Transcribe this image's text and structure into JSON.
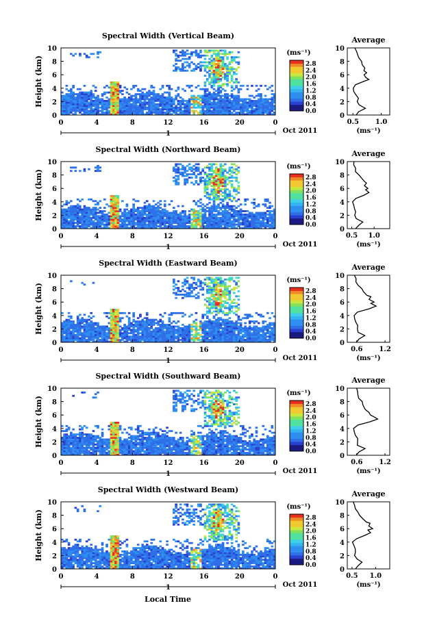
{
  "figure": {
    "xlabel": "Local Time",
    "date_label": "Oct 2011",
    "day_label": "1",
    "ylabel": "Height (km)",
    "colorbar_unit": "(ms⁻¹)",
    "avg_title": "Average",
    "avg_xlabel": "(ms⁻¹)"
  },
  "chart_data": [
    {
      "type": "heatmap",
      "title": "Spectral Width (Vertical Beam)",
      "x_ticks": [
        "0",
        "4",
        "8",
        "12",
        "16",
        "20",
        "0"
      ],
      "xlim": [
        0,
        24
      ],
      "y_ticks": [
        "0",
        "2",
        "4",
        "6",
        "8",
        "10"
      ],
      "ylim": [
        0,
        10
      ],
      "colorbar": {
        "ticks": [
          "0.0",
          "0.4",
          "0.8",
          "1.2",
          "1.6",
          "2.0",
          "2.4",
          "2.8"
        ],
        "range": [
          0,
          3.0
        ]
      },
      "average": {
        "x_ticks": [
          "0.5",
          "1.0"
        ],
        "xlim": [
          0.4,
          1.15
        ],
        "profile": [
          [
            0,
            0.55
          ],
          [
            0.5,
            0.62
          ],
          [
            1,
            0.72
          ],
          [
            1.5,
            0.6
          ],
          [
            2,
            0.56
          ],
          [
            2.5,
            0.58
          ],
          [
            3,
            0.54
          ],
          [
            3.5,
            0.52
          ],
          [
            4,
            0.5
          ],
          [
            4.5,
            0.55
          ],
          [
            5,
            0.7
          ],
          [
            5.3,
            0.78
          ],
          [
            5.6,
            0.74
          ],
          [
            6,
            0.7
          ],
          [
            6.3,
            0.74
          ],
          [
            6.6,
            0.68
          ],
          [
            7,
            0.72
          ],
          [
            7.5,
            0.66
          ],
          [
            8,
            0.64
          ],
          [
            8.5,
            0.6
          ],
          [
            9,
            0.58
          ],
          [
            9.5,
            0.56
          ],
          [
            10,
            0.55
          ]
        ]
      }
    },
    {
      "type": "heatmap",
      "title": "Spectral Width (Northward Beam)",
      "x_ticks": [
        "0",
        "4",
        "8",
        "12",
        "16",
        "20",
        "0"
      ],
      "xlim": [
        0,
        24
      ],
      "y_ticks": [
        "0",
        "2",
        "4",
        "6",
        "8",
        "10"
      ],
      "ylim": [
        0,
        10
      ],
      "colorbar": {
        "ticks": [
          "0.0",
          "0.4",
          "0.8",
          "1.2",
          "1.6",
          "2.0",
          "2.4",
          "2.8"
        ],
        "range": [
          0,
          3.0
        ]
      },
      "average": {
        "x_ticks": [
          "0.5",
          "1.0"
        ],
        "xlim": [
          0.4,
          1.35
        ],
        "profile": [
          [
            0,
            0.58
          ],
          [
            0.5,
            0.64
          ],
          [
            1,
            0.74
          ],
          [
            1.5,
            0.6
          ],
          [
            2,
            0.56
          ],
          [
            2.5,
            0.6
          ],
          [
            3,
            0.56
          ],
          [
            3.5,
            0.54
          ],
          [
            4,
            0.52
          ],
          [
            4.5,
            0.6
          ],
          [
            5,
            0.78
          ],
          [
            5.4,
            0.9
          ],
          [
            5.8,
            0.82
          ],
          [
            6,
            0.88
          ],
          [
            6.4,
            0.8
          ],
          [
            6.8,
            0.84
          ],
          [
            7,
            0.78
          ],
          [
            7.5,
            0.72
          ],
          [
            8,
            0.66
          ],
          [
            8.5,
            0.6
          ],
          [
            9,
            0.58
          ],
          [
            9.5,
            0.56
          ],
          [
            10,
            0.54
          ]
        ]
      }
    },
    {
      "type": "heatmap",
      "title": "Spectral Width (Eastward Beam)",
      "x_ticks": [
        "0",
        "4",
        "8",
        "12",
        "16",
        "20",
        "0"
      ],
      "xlim": [
        0,
        24
      ],
      "y_ticks": [
        "0",
        "2",
        "4",
        "6",
        "8",
        "10"
      ],
      "ylim": [
        0,
        10
      ],
      "colorbar": {
        "ticks": [
          "0.0",
          "0.4",
          "0.8",
          "1.2",
          "1.6",
          "2.0",
          "2.4",
          "2.8"
        ],
        "range": [
          0,
          3.0
        ]
      },
      "average": {
        "x_ticks": [
          "0.6",
          "1.2"
        ],
        "xlim": [
          0.4,
          1.3
        ],
        "profile": [
          [
            0,
            0.6
          ],
          [
            0.5,
            0.66
          ],
          [
            1,
            0.78
          ],
          [
            1.5,
            0.64
          ],
          [
            2,
            0.6
          ],
          [
            2.5,
            0.62
          ],
          [
            3,
            0.58
          ],
          [
            3.5,
            0.56
          ],
          [
            4,
            0.54
          ],
          [
            4.5,
            0.62
          ],
          [
            5,
            0.86
          ],
          [
            5.4,
            1.0
          ],
          [
            5.8,
            0.92
          ],
          [
            6,
            0.96
          ],
          [
            6.4,
            0.88
          ],
          [
            6.8,
            0.9
          ],
          [
            7,
            0.82
          ],
          [
            7.5,
            0.76
          ],
          [
            8,
            0.7
          ],
          [
            8.5,
            0.64
          ],
          [
            9,
            0.6
          ],
          [
            9.5,
            0.58
          ],
          [
            10,
            0.56
          ]
        ]
      }
    },
    {
      "type": "heatmap",
      "title": "Spectral Width (Southward Beam)",
      "x_ticks": [
        "0",
        "4",
        "8",
        "12",
        "16",
        "20",
        "0"
      ],
      "xlim": [
        0,
        24
      ],
      "y_ticks": [
        "0",
        "2",
        "4",
        "6",
        "8",
        "10"
      ],
      "ylim": [
        0,
        10
      ],
      "colorbar": {
        "ticks": [
          "0.0",
          "0.4",
          "0.8",
          "1.2",
          "1.6",
          "2.0",
          "2.4",
          "2.8"
        ],
        "range": [
          0,
          3.0
        ]
      },
      "average": {
        "x_ticks": [
          "0.6",
          "1.2"
        ],
        "xlim": [
          0.4,
          1.3
        ],
        "profile": [
          [
            0,
            0.6
          ],
          [
            0.5,
            0.66
          ],
          [
            1,
            0.76
          ],
          [
            1.5,
            0.62
          ],
          [
            2,
            0.6
          ],
          [
            2.5,
            0.62
          ],
          [
            3,
            0.58
          ],
          [
            3.5,
            0.56
          ],
          [
            4,
            0.55
          ],
          [
            4.5,
            0.64
          ],
          [
            5,
            0.88
          ],
          [
            5.4,
            1.05
          ],
          [
            5.8,
            0.96
          ],
          [
            6,
            0.9
          ],
          [
            6.4,
            0.86
          ],
          [
            6.8,
            0.8
          ],
          [
            7,
            0.78
          ],
          [
            7.5,
            0.74
          ],
          [
            8,
            0.7
          ],
          [
            8.5,
            0.66
          ],
          [
            9,
            0.62
          ],
          [
            9.5,
            0.6
          ],
          [
            10,
            0.58
          ]
        ]
      }
    },
    {
      "type": "heatmap",
      "title": "Spectral Width (Westward Beam)",
      "x_ticks": [
        "0",
        "4",
        "8",
        "12",
        "16",
        "20",
        "0"
      ],
      "xlim": [
        0,
        24
      ],
      "y_ticks": [
        "0",
        "2",
        "4",
        "6",
        "8",
        "10"
      ],
      "ylim": [
        0,
        10
      ],
      "colorbar": {
        "ticks": [
          "0.0",
          "0.4",
          "0.8",
          "1.2",
          "1.6",
          "2.0",
          "2.4",
          "2.8"
        ],
        "range": [
          0,
          3.0
        ]
      },
      "average": {
        "x_ticks": [
          "0.5",
          "1.0"
        ],
        "xlim": [
          0.4,
          1.3
        ],
        "profile": [
          [
            0,
            0.56
          ],
          [
            0.5,
            0.62
          ],
          [
            1,
            0.72
          ],
          [
            1.5,
            0.6
          ],
          [
            2,
            0.56
          ],
          [
            2.5,
            0.58
          ],
          [
            3,
            0.55
          ],
          [
            3.5,
            0.53
          ],
          [
            4,
            0.52
          ],
          [
            4.5,
            0.58
          ],
          [
            5,
            0.76
          ],
          [
            5.4,
            0.9
          ],
          [
            5.8,
            0.84
          ],
          [
            6,
            0.92
          ],
          [
            6.4,
            0.86
          ],
          [
            6.8,
            0.88
          ],
          [
            7,
            0.8
          ],
          [
            7.5,
            0.74
          ],
          [
            8,
            0.68
          ],
          [
            8.5,
            0.62
          ],
          [
            9,
            0.58
          ],
          [
            9.5,
            0.56
          ],
          [
            10,
            0.54
          ]
        ]
      }
    }
  ]
}
